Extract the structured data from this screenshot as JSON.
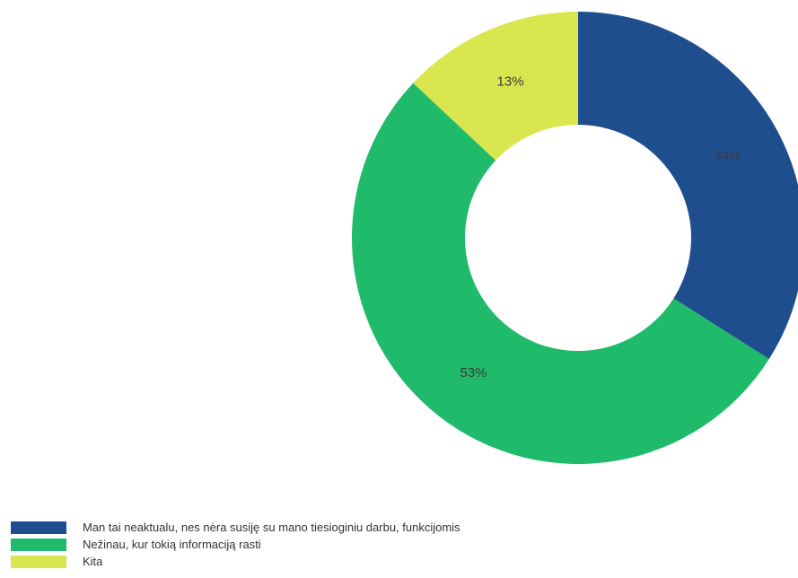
{
  "chart_data": {
    "type": "pie",
    "donut": true,
    "slices": [
      {
        "label": "Man tai neaktualu, nes nėra susiję su mano tiesioginiu darbu, funkcijomis",
        "value": 34,
        "display": "34%",
        "color": "#1f4e8f"
      },
      {
        "label": "Nežinau, kur tokią informaciją rasti",
        "value": 53,
        "display": "53%",
        "color": "#1fbb6a"
      },
      {
        "label": "Kita",
        "value": 13,
        "display": "13%",
        "color": "#d9e64e"
      }
    ],
    "legend_position": "bottom-left",
    "start_angle": "12 o'clock, clockwise"
  }
}
